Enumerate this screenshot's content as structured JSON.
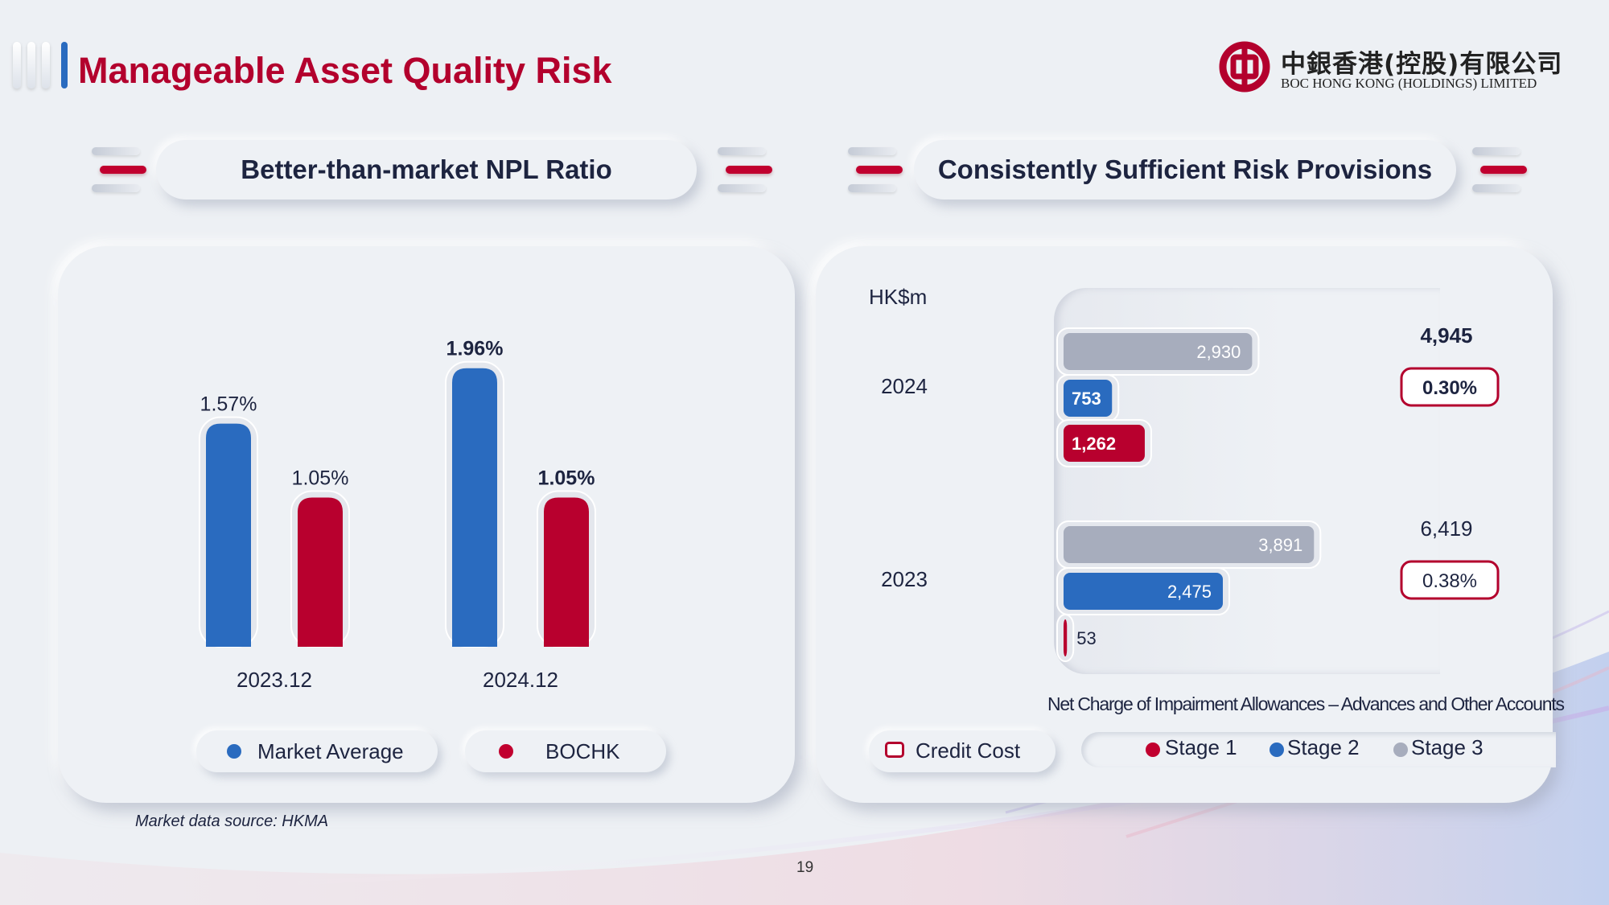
{
  "page": {
    "title": "Manageable Asset Quality Risk",
    "page_number": "19",
    "footnote": "Market data source: HKMA"
  },
  "logo": {
    "chinese_name": "中銀香港(控股)有限公司",
    "english_name": "BOC HONG KONG (HOLDINGS) LIMITED"
  },
  "colors": {
    "brand_red": "#b3002d",
    "bar_blue": "#2a6bbf",
    "bar_red": "#b8002e",
    "bar_grey": "#a7adbd"
  },
  "left_panel": {
    "heading": "Better-than-market NPL Ratio"
  },
  "right_panel": {
    "heading": "Consistently Sufficient Risk Provisions",
    "unit": "HK$m",
    "caption": "Net Charge of Impairment Allowances – Advances and Other Accounts"
  },
  "chart_data": [
    {
      "type": "bar",
      "orientation": "vertical",
      "categories": [
        "2023.12",
        "2024.12"
      ],
      "series": [
        {
          "name": "Market Average",
          "color": "#2a6bbf",
          "values": [
            1.57,
            1.96
          ],
          "labels": [
            "1.57%",
            "1.96%"
          ]
        },
        {
          "name": "BOCHK",
          "color": "#b8002e",
          "values": [
            1.05,
            1.05
          ],
          "labels": [
            "1.05%",
            "1.05%"
          ]
        }
      ],
      "ylim": [
        0,
        2.4
      ],
      "legend": "bottom",
      "grid": false
    },
    {
      "type": "bar",
      "orientation": "horizontal",
      "categories": [
        "2024",
        "2023"
      ],
      "series": [
        {
          "name": "Stage 3",
          "color": "#a7adbd",
          "values": [
            2930,
            3891
          ],
          "labels": [
            "2,930",
            "3,891"
          ]
        },
        {
          "name": "Stage 2",
          "color": "#2a6bbf",
          "values": [
            753,
            2475
          ],
          "labels": [
            "753",
            "2,475"
          ]
        },
        {
          "name": "Stage 1",
          "color": "#b8002e",
          "values": [
            1262,
            53
          ],
          "labels": [
            "1,262",
            "53"
          ]
        }
      ],
      "totals": [
        "4,945",
        "6,419"
      ],
      "credit_cost": {
        "name": "Credit Cost",
        "labels": [
          "0.30%",
          "0.38%"
        ]
      },
      "xlim": [
        0,
        4500
      ],
      "legend": "bottom",
      "grid": false
    }
  ]
}
